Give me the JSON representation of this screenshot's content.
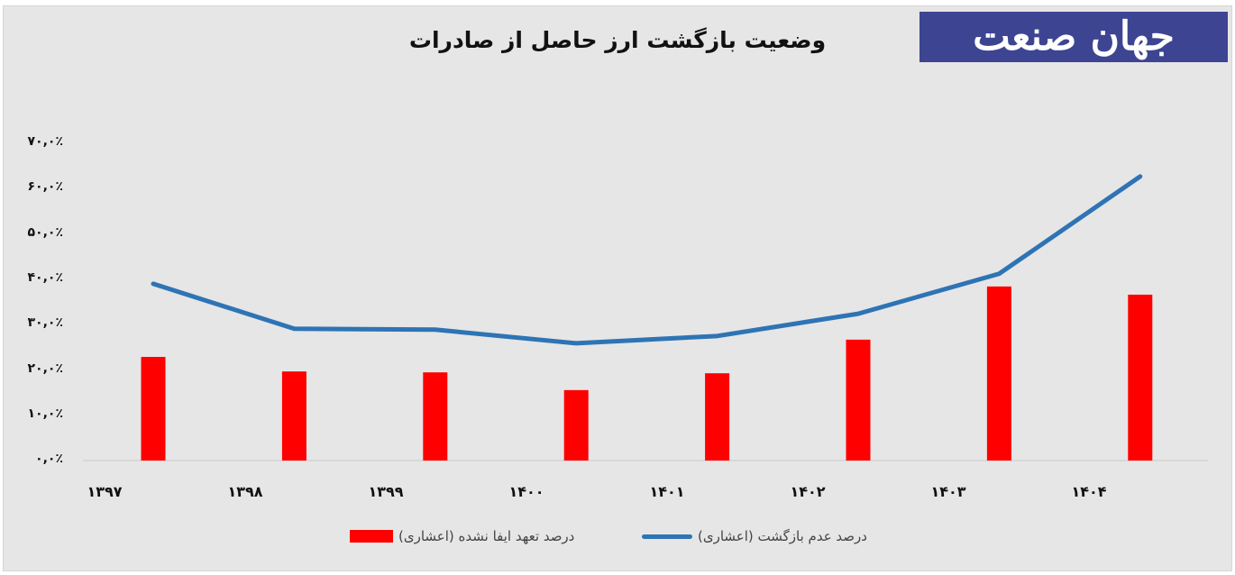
{
  "header": {
    "title": "وضعیت بازگشت ارز حاصل از صادرات",
    "logo_text": "جهان صنعت",
    "logo_bg": "#3d4592"
  },
  "y_axis": {
    "ticks": [
      "۷۰,۰٪",
      "۶۰,۰٪",
      "۵۰,۰٪",
      "۴۰,۰٪",
      "۳۰,۰٪",
      "۲۰,۰٪",
      "۱۰,۰٪",
      "۰,۰٪"
    ]
  },
  "x_axis": {
    "ticks": [
      "۱۳۹۷",
      "۱۳۹۸",
      "۱۳۹۹",
      "۱۴۰۰",
      "۱۴۰۱",
      "۱۴۰۲",
      "۱۴۰۳",
      "۱۴۰۴"
    ]
  },
  "legend": {
    "line_label": "درصد عدم بازگشت (اعشاری)",
    "bar_label": "درصد تعهد ایفا نشده (اعشاری)"
  },
  "colors": {
    "line": "#2e74b5",
    "bar": "#ff0000",
    "background": "#e6e6e6",
    "logo": "#3d4592"
  },
  "chart_data": {
    "type": "bar",
    "title": "وضعیت بازگشت ارز حاصل از صادرات",
    "xlabel": "",
    "ylabel": "",
    "categories": [
      "1397",
      "1398",
      "1399",
      "1400",
      "1401",
      "1402",
      "1403",
      "1404"
    ],
    "series": [
      {
        "name": "درصد تعهد ایفا نشده (اعشاری)",
        "type": "bar",
        "color": "#ff0000",
        "values": [
          22.8,
          19.6,
          19.4,
          15.5,
          19.2,
          26.6,
          38.3,
          36.5
        ]
      },
      {
        "name": "درصد عدم بازگشت (اعشاری)",
        "type": "line",
        "color": "#2e74b5",
        "values": [
          38.9,
          29.0,
          28.8,
          25.8,
          27.4,
          32.3,
          41.1,
          62.5
        ]
      }
    ],
    "ylim": [
      0,
      70
    ],
    "y_ticks": [
      0,
      10,
      20,
      30,
      40,
      50,
      60,
      70
    ],
    "y_tick_format": "percent, one decimal, Persian digits",
    "grid": false,
    "legend_position": "bottom"
  }
}
